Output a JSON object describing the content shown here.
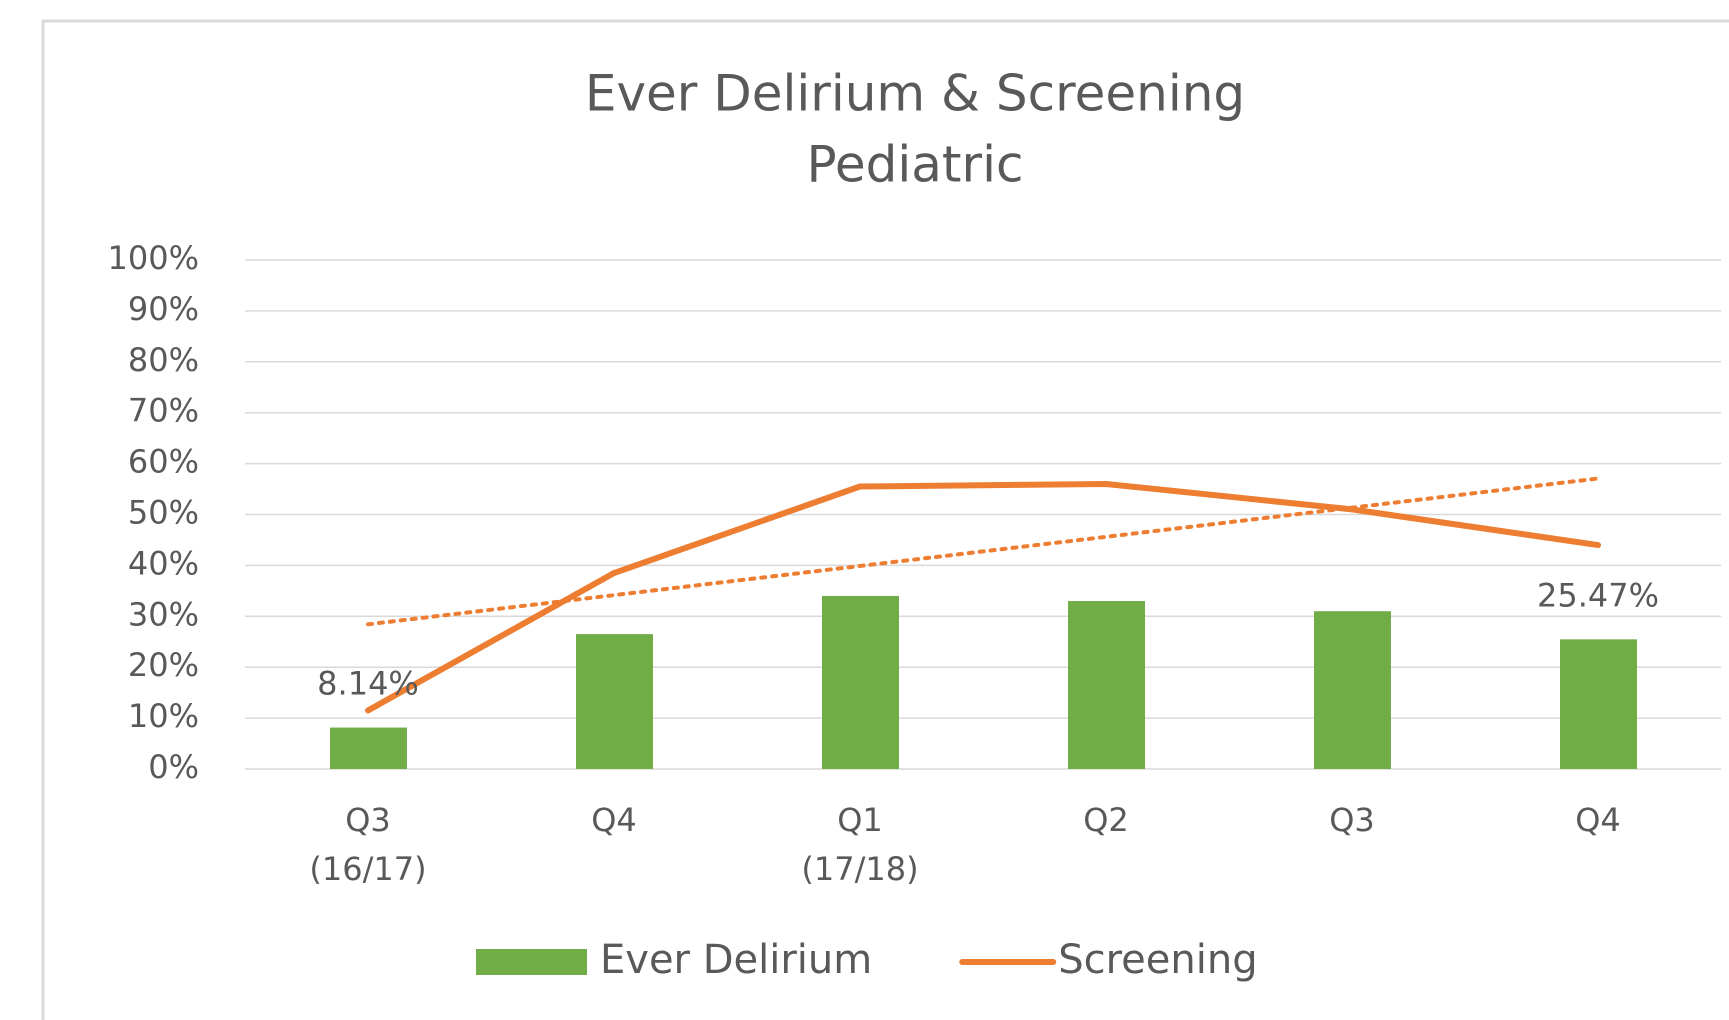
{
  "chart_data": {
    "type": "bar_line",
    "title": [
      "Ever Delirium & Screening",
      "Pediatric"
    ],
    "categories": [
      [
        "Q3",
        "(16/17)"
      ],
      [
        "Q4"
      ],
      [
        "Q1",
        "(17/18)"
      ],
      [
        "Q2"
      ],
      [
        "Q3"
      ],
      [
        "Q4"
      ]
    ],
    "series": [
      {
        "name": "Ever Delirium",
        "type": "bar",
        "color": "#70ad47",
        "values": [
          8.14,
          26.5,
          34,
          33,
          31,
          25.47
        ],
        "value_labels": [
          "8.14%",
          null,
          null,
          null,
          null,
          "25.47%"
        ]
      },
      {
        "name": "Screening",
        "type": "line",
        "color": "#ed7d31",
        "values": [
          11.5,
          38.5,
          55.5,
          56,
          51,
          44
        ],
        "trendline": "linear"
      }
    ],
    "ylim": [
      0,
      100
    ],
    "yticks": [
      {
        "value": 0,
        "label": "0%"
      },
      {
        "value": 10,
        "label": "10%"
      },
      {
        "value": 20,
        "label": "20%"
      },
      {
        "value": 30,
        "label": "30%"
      },
      {
        "value": 40,
        "label": "40%"
      },
      {
        "value": 50,
        "label": "50%"
      },
      {
        "value": 60,
        "label": "60%"
      },
      {
        "value": 70,
        "label": "70%"
      },
      {
        "value": 80,
        "label": "80%"
      },
      {
        "value": 90,
        "label": "90%"
      },
      {
        "value": 100,
        "label": "100%"
      }
    ],
    "grid": true,
    "legend": "bottom"
  }
}
